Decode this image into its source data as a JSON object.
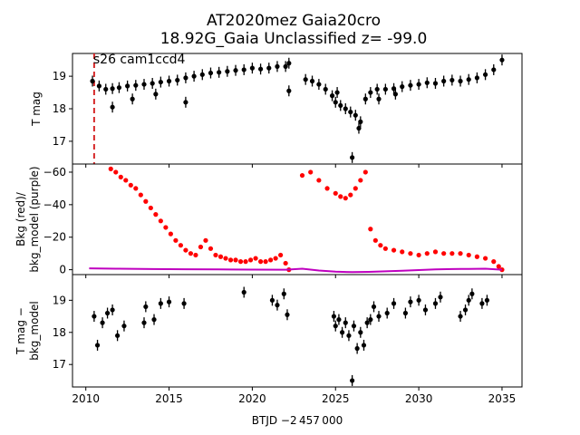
{
  "figure": {
    "title_line1": "AT2020mez  Gaia20cro",
    "title_line2": "18.92G_Gaia Unclassified z= -99.0",
    "xlabel": "BTJD −2 457 000",
    "x_ticks": [
      "2010",
      "2015",
      "2020",
      "2025",
      "2030",
      "2035"
    ]
  },
  "chart_data": [
    {
      "type": "scatter",
      "panel": "top",
      "ylabel": "T mag",
      "annotation": "s26 cam1ccd4",
      "marker_line_x": 2010.5,
      "marker_line_color": "#d62728",
      "xlim": [
        2009.2,
        2036.2
      ],
      "ylim": [
        19.7,
        16.3
      ],
      "y_inverted": true,
      "y_ticks": [
        "17",
        "18",
        "19"
      ],
      "series": [
        {
          "color": "#000000",
          "x": [
            2010.4,
            2010.8,
            2011.2,
            2011.6,
            2012.0,
            2012.5,
            2013.0,
            2013.5,
            2014.0,
            2014.5,
            2015.0,
            2015.5,
            2016.0,
            2016.5,
            2017.0,
            2017.5,
            2018.0,
            2018.5,
            2019.0,
            2019.5,
            2020.0,
            2020.5,
            2021.0,
            2021.5,
            2022.0,
            2022.2,
            2023.2,
            2023.6,
            2024.0,
            2024.4,
            2024.8,
            2025.0,
            2025.3,
            2025.6,
            2025.9,
            2026.2,
            2026.5,
            2026.8,
            2027.1,
            2027.5,
            2028.0,
            2028.5,
            2029.0,
            2029.5,
            2030.0,
            2030.5,
            2031.0,
            2031.5,
            2032.0,
            2032.5,
            2033.0,
            2033.5,
            2034.0,
            2034.5,
            2035.0
          ],
          "y": [
            18.85,
            18.7,
            18.6,
            18.62,
            18.65,
            18.7,
            18.72,
            18.75,
            18.78,
            18.82,
            18.85,
            18.88,
            18.95,
            19.0,
            19.05,
            19.1,
            19.12,
            19.15,
            19.18,
            19.2,
            19.25,
            19.22,
            19.25,
            19.3,
            19.3,
            19.4,
            18.9,
            18.85,
            18.75,
            18.6,
            18.4,
            18.2,
            18.1,
            18.0,
            17.9,
            17.8,
            17.6,
            18.3,
            18.5,
            18.6,
            18.6,
            18.62,
            18.68,
            18.72,
            18.75,
            18.8,
            18.78,
            18.85,
            18.88,
            18.85,
            18.9,
            18.95,
            19.05,
            19.2,
            19.5
          ]
        },
        {
          "color": "#000000",
          "x": [
            2011.6,
            2012.8,
            2014.2,
            2016.0,
            2022.2,
            2025.1,
            2026.0,
            2026.4,
            2027.6,
            2028.6
          ],
          "y": [
            18.05,
            18.3,
            18.45,
            18.2,
            18.55,
            18.5,
            16.5,
            17.4,
            18.3,
            18.45
          ]
        }
      ]
    },
    {
      "type": "scatter",
      "panel": "middle",
      "ylabel": "Bkg (red)/\nbkg_model (purple)",
      "xlim": [
        2009.2,
        2036.2
      ],
      "ylim": [
        -65,
        3
      ],
      "y_ticks": [
        "0",
        "−20",
        "−40",
        "−60"
      ],
      "series": [
        {
          "color": "#ff0000",
          "x": [
            2011.5,
            2011.8,
            2012.1,
            2012.4,
            2012.7,
            2013.0,
            2013.3,
            2013.6,
            2013.9,
            2014.2,
            2014.5,
            2014.8,
            2015.1,
            2015.4,
            2015.7,
            2016.0,
            2016.3,
            2016.6,
            2016.9,
            2017.2,
            2017.5,
            2017.8,
            2018.1,
            2018.4,
            2018.7,
            2019.0,
            2019.3,
            2019.6,
            2019.9,
            2020.2,
            2020.5,
            2020.8,
            2021.1,
            2021.4,
            2021.7,
            2022.0,
            2022.2,
            2023.0,
            2023.5,
            2024.0,
            2024.5,
            2025.0,
            2025.3,
            2025.6,
            2025.9,
            2026.2,
            2026.5,
            2026.8,
            2027.1,
            2027.4,
            2027.7,
            2028.0,
            2028.5,
            2029.0,
            2029.5,
            2030.0,
            2030.5,
            2031.0,
            2031.5,
            2032.0,
            2032.5,
            2033.0,
            2033.5,
            2034.0,
            2034.5,
            2034.8,
            2035.0
          ],
          "y": [
            -62,
            -60,
            -57,
            -55,
            -52,
            -50,
            -46,
            -42,
            -38,
            -34,
            -30,
            -26,
            -22,
            -18,
            -15,
            -12,
            -10,
            -9,
            -14,
            -18,
            -13,
            -9,
            -8,
            -7,
            -6,
            -6,
            -5,
            -5,
            -6,
            -7,
            -5,
            -5,
            -6,
            -7,
            -9,
            -4,
            0,
            -58,
            -60,
            -55,
            -50,
            -47,
            -45,
            -44,
            -46,
            -50,
            -55,
            -60,
            -25,
            -18,
            -15,
            -13,
            -12,
            -11,
            -10,
            -9,
            -10,
            -11,
            -10,
            -10,
            -10,
            -9,
            -8,
            -7,
            -5,
            -2,
            0
          ]
        },
        {
          "color": "#bf00bf",
          "x": [
            2010.2,
            2012.0,
            2014.0,
            2016.0,
            2018.0,
            2020.0,
            2022.0,
            2023.0,
            2024.0,
            2025.0,
            2026.0,
            2027.0,
            2028.0,
            2029.0,
            2030.0,
            2031.0,
            2032.0,
            2033.0,
            2034.0,
            2035.0
          ],
          "y": [
            -0.8,
            -0.6,
            -0.4,
            -0.3,
            -0.2,
            -0.1,
            0,
            -0.6,
            0.5,
            1.2,
            1.5,
            1.3,
            1.0,
            0.6,
            0.2,
            -0.2,
            -0.4,
            -0.5,
            -0.6,
            0.0
          ]
        }
      ]
    },
    {
      "type": "scatter",
      "panel": "bottom",
      "ylabel": "T mag −\nbkg_model",
      "xlim": [
        2009.2,
        2036.2
      ],
      "ylim": [
        19.8,
        16.3
      ],
      "y_inverted": true,
      "y_ticks": [
        "17",
        "18",
        "19"
      ],
      "series": [
        {
          "color": "#000000",
          "x": [
            2010.5,
            2010.7,
            2011.0,
            2011.3,
            2011.6,
            2011.9,
            2012.3,
            2013.5,
            2013.6,
            2014.1,
            2014.5,
            2015.0,
            2015.9,
            2019.5,
            2021.2,
            2021.5,
            2021.9,
            2022.1,
            2024.9,
            2025.0,
            2025.2,
            2025.4,
            2025.6,
            2025.8,
            2026.0,
            2026.1,
            2026.3,
            2026.5,
            2026.7,
            2026.9,
            2027.1,
            2027.3,
            2027.6,
            2028.1,
            2028.5,
            2029.2,
            2029.5,
            2030.0,
            2030.4,
            2031.0,
            2031.3,
            2032.5,
            2032.8,
            2033.0,
            2033.2,
            2033.8,
            2034.1
          ],
          "y": [
            18.5,
            17.6,
            18.3,
            18.6,
            18.7,
            17.9,
            18.2,
            18.3,
            18.8,
            18.4,
            18.9,
            18.95,
            18.9,
            19.25,
            19.0,
            18.85,
            19.2,
            18.55,
            18.5,
            18.2,
            18.4,
            18.0,
            18.3,
            17.9,
            16.5,
            18.2,
            17.5,
            18.0,
            17.6,
            18.3,
            18.4,
            18.8,
            18.5,
            18.6,
            18.9,
            18.6,
            18.95,
            19.0,
            18.7,
            18.9,
            19.1,
            18.5,
            18.7,
            19.0,
            19.2,
            18.9,
            19.0
          ]
        }
      ]
    }
  ]
}
